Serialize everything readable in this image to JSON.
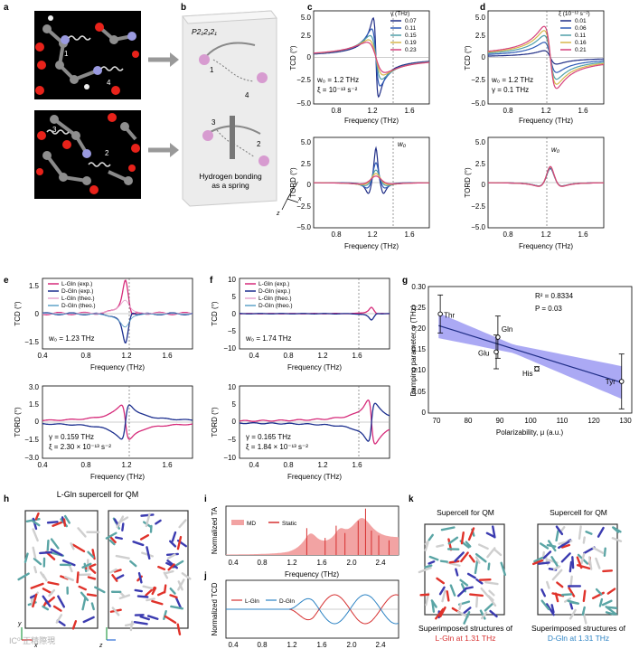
{
  "panels": {
    "a": {
      "label": "a",
      "spring_numbers": [
        "1",
        "4",
        "3",
        "2"
      ]
    },
    "b": {
      "label": "b",
      "space_group": "P2₁2₁2₁",
      "spring_numbers": [
        "1",
        "4",
        "3",
        "2"
      ],
      "caption_line1": "Hydrogen bonding",
      "caption_line2": "as a spring",
      "axes": [
        "y",
        "x",
        "z"
      ]
    },
    "c": {
      "label": "c",
      "legend_title": "γ (THz)",
      "legend": [
        "0.07",
        "0.11",
        "0.15",
        "0.19",
        "0.23"
      ],
      "annot1": "w₀ = 1.2 THz",
      "annot2": "ξ = 10⁻¹³ s⁻²",
      "peak_label": "w₀",
      "ylabel_top": "TCD (°)",
      "ylabel_bottom": "TORD (°)",
      "xlabel": "Frequency (THz)",
      "xticks": [
        "0.8",
        "1.2",
        "1.6"
      ],
      "yticks": [
        "5.0",
        "2.5",
        "0",
        "−2.5",
        "−5.0"
      ]
    },
    "d": {
      "label": "d",
      "legend_title": "ξ (10⁻¹² s⁻²)",
      "legend": [
        "0.01",
        "0.06",
        "0.11",
        "0.16",
        "0.21"
      ],
      "annot1": "w₀ = 1.2 THz",
      "annot2": "γ = 0.1 THz",
      "peak_label": "w₀",
      "ylabel_top": "TCD (°)",
      "ylabel_bottom": "TORD (°)",
      "xlabel": "Frequency (THz)",
      "xticks": [
        "0.8",
        "1.2",
        "1.6"
      ],
      "yticks": [
        "5.0",
        "2.5",
        "0",
        "−2.5",
        "−5.0"
      ]
    },
    "e": {
      "label": "e",
      "legend": [
        "L-Gln (exp.)",
        "D-Gln (exp.)",
        "L-Gln (theo.)",
        "D-Gln (theo.)"
      ],
      "annot_top": "w₀ = 1.23 THz",
      "annot_b1": "γ = 0.159 THz",
      "annot_b2": "ξ = 2.30 × 10⁻¹³ s⁻²",
      "ylabel_top": "TCD (°)",
      "ylabel_bottom": "TORD (°)",
      "xlabel": "Frequency (THz)",
      "xticks": [
        "0.4",
        "0.8",
        "1.2",
        "1.6"
      ],
      "yticks_top": [
        "1.5",
        "0",
        "−1.5"
      ],
      "yticks_bottom": [
        "3.0",
        "1.5",
        "0",
        "−1.5",
        "−3.0"
      ]
    },
    "f": {
      "label": "f",
      "legend": [
        "L-Gln (exp.)",
        "D-Gln (exp.)",
        "L-Gln (theo.)",
        "D-Gln (theo.)"
      ],
      "annot_top": "w₀ = 1.74 THz",
      "annot_b1": "γ = 0.165 THz",
      "annot_b2": "ξ = 1.84 × 10⁻¹³ s⁻²",
      "ylabel_top": "TCD (°)",
      "ylabel_bottom": "TORD (°)",
      "xlabel": "Frequency (THz)",
      "xticks": [
        "0.4",
        "0.8",
        "1.2",
        "1.6"
      ],
      "yticks_top": [
        "10",
        "5",
        "0",
        "−5",
        "−10"
      ],
      "yticks_bottom": [
        "10",
        "5",
        "0",
        "−5",
        "−10"
      ]
    },
    "g": {
      "label": "g",
      "r2": "R² = 0.8334",
      "p": "P = 0.03",
      "ylabel": "Damping parameter, γ (THz)",
      "xlabel": "Polarizability, μ (a.u.)",
      "xticks": [
        "70",
        "80",
        "90",
        "100",
        "110",
        "120",
        "130"
      ],
      "yticks": [
        "0.30",
        "0.25",
        "0.20",
        "0.15",
        "0.10",
        "0.05",
        "0"
      ]
    },
    "h": {
      "label": "h",
      "title": "L-Gln supercell for QM",
      "axes": [
        "y",
        "x",
        "z"
      ]
    },
    "i": {
      "label": "i",
      "legend": [
        "MD",
        "Static"
      ],
      "ylabel": "Normalized TA",
      "xlabel": "Frequency (THz)",
      "xticks": [
        "0.4",
        "0.8",
        "1.2",
        "1.6",
        "2.0",
        "2.4"
      ]
    },
    "j": {
      "label": "j",
      "legend": [
        "L-Gln",
        "D-Gln"
      ],
      "ylabel": "Normalized TCD",
      "xticks": [
        "0.4",
        "0.8",
        "1.2",
        "1.6",
        "2.0",
        "2.4"
      ]
    },
    "k": {
      "label": "k",
      "title_left": "Supercell for QM",
      "title_right": "Supercell for QM",
      "cap_left_1": "Superimposed structures of",
      "cap_left_2": "L-Gln at 1.31 THz",
      "cap_right_1": "Superimposed structures of",
      "cap_right_2": "D-Gln at 1.31 THz"
    }
  },
  "watermark": "IC⁰ 正精際現",
  "colors": {
    "c_series": [
      "#1f2d86",
      "#2f5bb7",
      "#4f9fa8",
      "#d8b74a",
      "#d6417b"
    ],
    "d_series": [
      "#1f2d86",
      "#2f5bb7",
      "#4f9fa8",
      "#d8b74a",
      "#d6417b"
    ],
    "l_exp": "#d62b7a",
    "d_exp": "#1c2f8f",
    "l_theo": "#e8a6cf",
    "d_theo": "#5da2c9",
    "fit_band": "#8f8cf0",
    "fit_line": "#1f2d86",
    "md_fill": "#f2a3a3",
    "static": "#d63030"
  },
  "chart_data": [
    {
      "panel": "c-top",
      "type": "line",
      "title": "",
      "xlabel": "Frequency (THz)",
      "ylabel": "TCD (°)",
      "xlim": [
        0.5,
        1.8
      ],
      "ylim": [
        -5,
        5
      ],
      "x0": 1.2,
      "series": [
        {
          "name": "0.07",
          "peak": 4.7
        },
        {
          "name": "0.11",
          "peak": 3.4
        },
        {
          "name": "0.15",
          "peak": 2.6
        },
        {
          "name": "0.19",
          "peak": 2.1
        },
        {
          "name": "0.23",
          "peak": 1.8
        }
      ]
    },
    {
      "panel": "c-bottom",
      "type": "line",
      "xlabel": "Frequency (THz)",
      "ylabel": "TORD (°)",
      "xlim": [
        0.5,
        1.8
      ],
      "ylim": [
        -5,
        5
      ],
      "x0": 1.2,
      "series": [
        {
          "name": "0.07",
          "peak": 4.6
        },
        {
          "name": "0.11",
          "peak": 3.2
        },
        {
          "name": "0.15",
          "peak": 2.4
        },
        {
          "name": "0.19",
          "peak": 2.0
        },
        {
          "name": "0.23",
          "peak": 1.6
        }
      ]
    },
    {
      "panel": "d-top",
      "type": "line",
      "xlabel": "Frequency (THz)",
      "ylabel": "TCD (°)",
      "xlim": [
        0.5,
        1.8
      ],
      "ylim": [
        -5,
        5
      ],
      "x0": 1.2,
      "series": [
        {
          "name": "0.01",
          "peak": 0.8
        },
        {
          "name": "0.06",
          "peak": 1.8
        },
        {
          "name": "0.11",
          "peak": 2.6
        },
        {
          "name": "0.16",
          "peak": 3.2
        },
        {
          "name": "0.21",
          "peak": 3.7
        }
      ]
    },
    {
      "panel": "d-bottom",
      "type": "line",
      "xlabel": "Frequency (THz)",
      "ylabel": "TORD (°)",
      "xlim": [
        0.5,
        1.8
      ],
      "ylim": [
        -5,
        5
      ],
      "x0": 1.2,
      "series": [
        {
          "name": "0.01",
          "peak": 2.8
        },
        {
          "name": "0.06",
          "peak": 2.9
        },
        {
          "name": "0.11",
          "peak": 3.0
        },
        {
          "name": "0.16",
          "peak": 3.1
        },
        {
          "name": "0.21",
          "peak": 3.2
        }
      ]
    },
    {
      "panel": "e-top",
      "type": "line",
      "xlabel": "Frequency (THz)",
      "ylabel": "TCD (°)",
      "xlim": [
        0.4,
        1.9
      ],
      "ylim": [
        -1.5,
        1.5
      ],
      "x0": 1.23,
      "series": [
        {
          "name": "L-Gln (exp.)",
          "amp": 1.6
        },
        {
          "name": "D-Gln (exp.)",
          "amp": -1.4
        },
        {
          "name": "L-Gln (theo.)",
          "amp": 0.7
        },
        {
          "name": "D-Gln (theo.)",
          "amp": -0.7
        }
      ]
    },
    {
      "panel": "e-bottom",
      "type": "line",
      "xlabel": "Frequency (THz)",
      "ylabel": "TORD (°)",
      "xlim": [
        0.4,
        1.9
      ],
      "ylim": [
        -3,
        3
      ],
      "x0": 1.23,
      "series": [
        {
          "name": "L-Gln (exp.)",
          "amp": 1.8
        },
        {
          "name": "D-Gln (exp.)",
          "amp": -1.8
        }
      ]
    },
    {
      "panel": "f-top",
      "type": "line",
      "xlabel": "Frequency (THz)",
      "ylabel": "TCD (°)",
      "xlim": [
        0.2,
        1.95
      ],
      "ylim": [
        -10,
        10
      ],
      "x0": 1.74,
      "series": [
        {
          "name": "L-Gln (exp.)",
          "amp": 2.0
        },
        {
          "name": "D-Gln (exp.)",
          "amp": -2.0
        }
      ]
    },
    {
      "panel": "f-bottom",
      "type": "line",
      "xlabel": "Frequency (THz)",
      "ylabel": "TORD (°)",
      "xlim": [
        0.2,
        1.95
      ],
      "ylim": [
        -10,
        10
      ],
      "x0": 1.74,
      "series": [
        {
          "name": "L-Gln (exp.)",
          "amp": 7.5
        },
        {
          "name": "D-Gln (exp.)",
          "amp": -6.5
        }
      ]
    },
    {
      "panel": "g",
      "type": "scatter",
      "xlabel": "Polarizability, μ (a.u.)",
      "ylabel": "Damping parameter, γ (THz)",
      "xlim": [
        70,
        130
      ],
      "ylim": [
        0,
        0.3
      ],
      "points": [
        {
          "label": "Thr",
          "x": 73.5,
          "y": 0.235,
          "err": 0.045
        },
        {
          "label": "Gln",
          "x": 90.5,
          "y": 0.18,
          "err": 0.05
        },
        {
          "label": "Glu",
          "x": 90,
          "y": 0.145,
          "err": 0.04
        },
        {
          "label": "His",
          "x": 102,
          "y": 0.105,
          "err": 0.005
        },
        {
          "label": "Tyr",
          "x": 127,
          "y": 0.075,
          "err": 0.065
        }
      ],
      "fit": {
        "slope": -0.0025,
        "intercept": 0.39
      }
    },
    {
      "panel": "i",
      "type": "area",
      "xlabel": "Frequency (THz)",
      "ylabel": "Normalized TA",
      "xlim": [
        0.2,
        2.55
      ],
      "series": [
        "MD",
        "Static"
      ]
    },
    {
      "panel": "j",
      "type": "line",
      "ylabel": "Normalized TCD",
      "xlim": [
        0.2,
        2.55
      ],
      "series": [
        "L-Gln",
        "D-Gln"
      ]
    }
  ]
}
